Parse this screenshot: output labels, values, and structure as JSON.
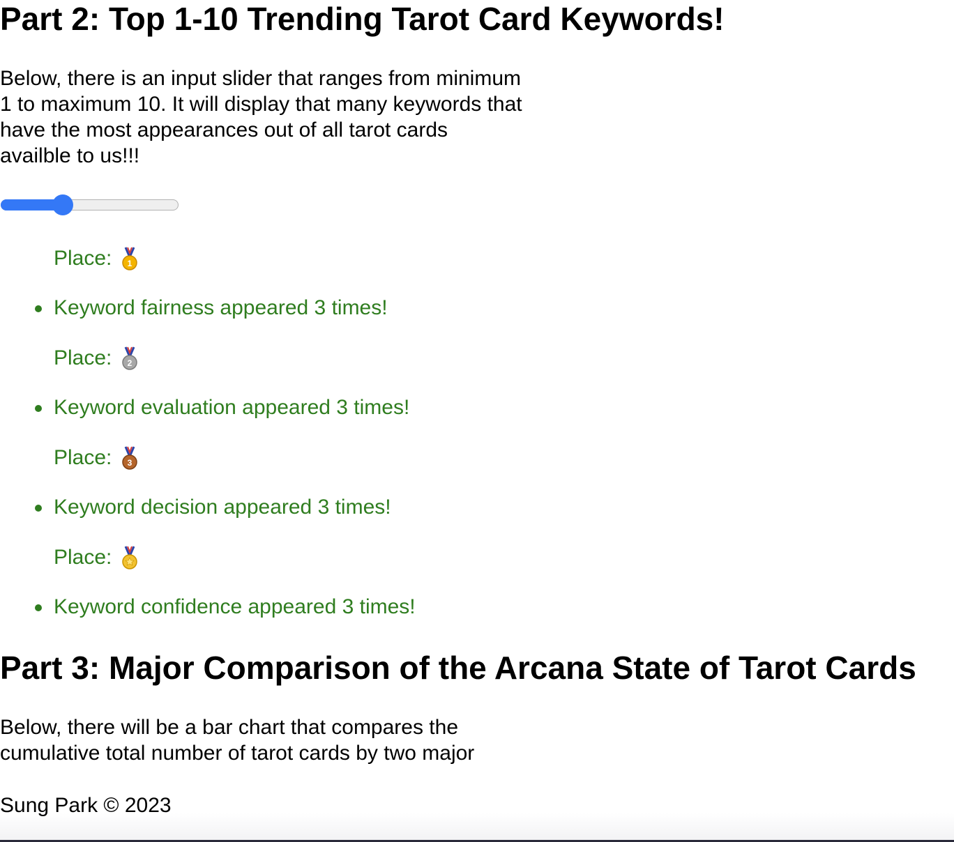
{
  "part2": {
    "heading": "Part 2: Top 1-10 Trending Tarot Card Keywords!",
    "desc_lines": [
      "Below, there is an input slider that ranges from minimum",
      "1 to maximum 10. It will display that many keywords that",
      "have the most appearances out of all tarot cards",
      "availble to us!!!"
    ],
    "slider": {
      "min": 1,
      "max": 10,
      "value": 4
    },
    "place_label": "Place:",
    "entries": [
      {
        "medal": "gold-first-place-medal-icon",
        "text": "Keyword fairness appeared 3 times!"
      },
      {
        "medal": "silver-second-place-medal-icon",
        "text": "Keyword evaluation appeared 3 times!"
      },
      {
        "medal": "bronze-third-place-medal-icon",
        "text": "Keyword decision appeared 3 times!"
      },
      {
        "medal": "sports-medal-icon",
        "text": "Keyword confidence appeared 3 times!"
      }
    ]
  },
  "part3": {
    "heading": "Part 3: Major Comparison of the Arcana State of Tarot Cards",
    "desc_lines": [
      "Below, there will be a bar chart that compares the",
      "cumulative total number of tarot cards by two major"
    ]
  },
  "footer": {
    "text": "Sung Park © 2023"
  },
  "colors": {
    "keyword_text": "#2f7d1f",
    "slider_accent": "#3478f6"
  }
}
